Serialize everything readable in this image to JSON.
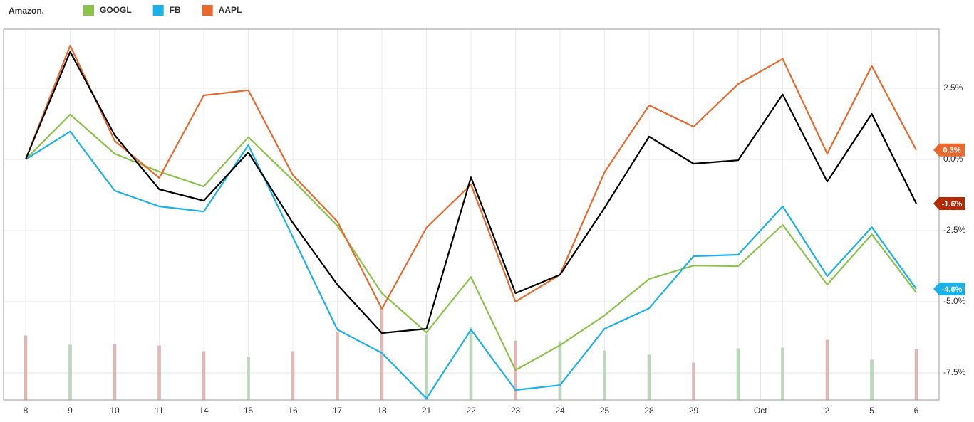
{
  "chart_data": {
    "type": "line",
    "categories": [
      "8",
      "9",
      "10",
      "11",
      "14",
      "15",
      "16",
      "17",
      "18",
      "21",
      "22",
      "23",
      "24",
      "25",
      "28",
      "29",
      null,
      null,
      "2",
      "5",
      "6"
    ],
    "month_label": "Oct",
    "ylim": [
      -8.45,
      4.575
    ],
    "yticks": [
      {
        "value": 2.5,
        "label": "2.5%"
      },
      {
        "value": 0,
        "label": "0.0%"
      },
      {
        "value": -2.5,
        "label": "-2.5%"
      },
      {
        "value": -5,
        "label": "-5.0%"
      },
      {
        "value": -7.5,
        "label": "-7.5%"
      }
    ],
    "grid": true,
    "series": [
      {
        "name": "Amazon.",
        "color": "#000000",
        "values": [
          0,
          3.78,
          0.85,
          -1.05,
          -1.45,
          0.25,
          -2.23,
          -4.4,
          -6.1,
          -5.95,
          -0.63,
          -4.7,
          -4.05,
          -1.7,
          0.8,
          -0.15,
          -0.03,
          2.28,
          -0.78,
          1.6,
          -1.55
        ],
        "end_label": "-1.6%",
        "end_color": "#b32a00"
      },
      {
        "name": "GOOGL",
        "color": "#8bc34a",
        "values": [
          0,
          1.58,
          0.2,
          -0.43,
          -0.95,
          0.78,
          -0.73,
          -2.33,
          -4.7,
          -6.08,
          -4.13,
          -7.4,
          -6.53,
          -5.48,
          -4.2,
          -3.73,
          -3.75,
          -2.3,
          -4.4,
          -2.63,
          -4.68
        ]
      },
      {
        "name": "FB",
        "color": "#1ab0e8",
        "values": [
          0,
          0.98,
          -1.1,
          -1.65,
          -1.83,
          0.5,
          -2.73,
          -5.98,
          -6.8,
          -8.4,
          -5.98,
          -8.1,
          -7.93,
          -5.95,
          -5.23,
          -3.4,
          -3.35,
          -1.65,
          -4.1,
          -2.38,
          -4.55
        ],
        "end_label": "-4.6%",
        "end_color": "#1ab0e8"
      },
      {
        "name": "AAPL",
        "color": "#e8692e",
        "values": [
          0,
          4.0,
          0.65,
          -0.65,
          2.25,
          2.43,
          -0.55,
          -2.18,
          -5.25,
          -2.4,
          -0.88,
          -5.0,
          -4.05,
          -0.45,
          1.9,
          1.15,
          2.65,
          3.53,
          0.2,
          3.28,
          0.33
        ],
        "end_label": "0.3%",
        "end_color": "#e8692e"
      }
    ],
    "volume": {
      "lim": [
        0,
        520
      ],
      "values": [
        90,
        77,
        78,
        76,
        68,
        60,
        68,
        95,
        129,
        91,
        102,
        83,
        82,
        69,
        63,
        52,
        72,
        73,
        84,
        56,
        71
      ],
      "colors": [
        "#e8b4b4",
        "#b9d9b9",
        "#e8b4b4",
        "#e8b4b4",
        "#e8b4b4",
        "#b9d9b9",
        "#e8b4b4",
        "#e8b4b4",
        "#e8b4b4",
        "#b9d9b9",
        "#b9d9b9",
        "#e8b4b4",
        "#b9d9b9",
        "#b9d9b9",
        "#b9d9b9",
        "#e8b4b4",
        "#b9d9b9",
        "#b9d9b9",
        "#e8b4b4",
        "#b9d9b9",
        "#e8b4b4"
      ]
    }
  }
}
